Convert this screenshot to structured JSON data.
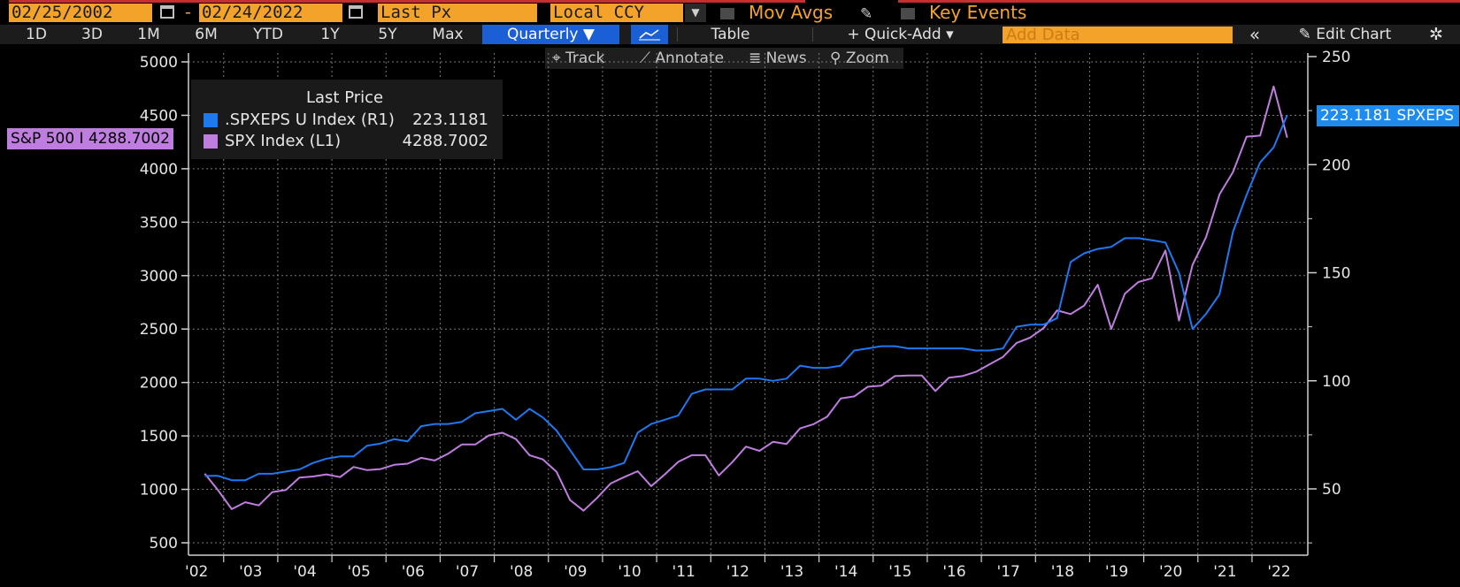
{
  "toolbar": {
    "start_date": "02/25/2002",
    "end_date": "02/24/2022",
    "date_dash": "-",
    "field": "Last Px",
    "currency": "Local CCY",
    "mov_avgs": "Mov Avgs",
    "key_events": "Key Events"
  },
  "tabs": {
    "periods": [
      "1D",
      "3D",
      "1M",
      "6M",
      "YTD",
      "1Y",
      "5Y",
      "Max"
    ],
    "frequency": "Quarterly ▼",
    "table": "Table",
    "quick_add": "+ Quick-Add ▾",
    "add_data_placeholder": "Add Data",
    "collapse": "«",
    "edit_chart": "Edit Chart"
  },
  "chart_toolbar": {
    "track": "Track",
    "annotate": "Annotate",
    "news": "News",
    "zoom": "Zoom"
  },
  "legend": {
    "title": "Last Price",
    "items": [
      {
        "name": ".SPXEPS U Index  (R1)",
        "value": "223.1181",
        "color": "#1e78f0"
      },
      {
        "name": "SPX Index  (L1)",
        "value": "4288.7002",
        "color": "#c07de0"
      }
    ]
  },
  "tags": {
    "left": "S&P 500 I 4288.7002",
    "right": "223.1181 SPXEPS"
  },
  "chart_data": {
    "type": "line",
    "x_tick_labels": [
      "'02",
      "'03",
      "'04",
      "'05",
      "'06",
      "'07",
      "'08",
      "'09",
      "'10",
      "'11",
      "'12",
      "'13",
      "'14",
      "'15",
      "'16",
      "'17",
      "'18",
      "'19",
      "'20",
      "'21",
      "'22"
    ],
    "left_axis": {
      "ticks": [
        500,
        1000,
        1500,
        2000,
        2500,
        3000,
        3500,
        4000,
        4500,
        5000
      ],
      "range": [
        360,
        5100
      ]
    },
    "right_axis": {
      "ticks": [
        50,
        100,
        150,
        200,
        250
      ],
      "range": [
        25,
        255
      ]
    },
    "grid": true,
    "series": [
      {
        "name": "SPX Index",
        "axis": "left",
        "color": "#c07de0",
        "x": [
          2002.15,
          2002.4,
          2002.65,
          2002.9,
          2003.15,
          2003.4,
          2003.65,
          2003.9,
          2004.15,
          2004.4,
          2004.65,
          2004.9,
          2005.15,
          2005.4,
          2005.65,
          2005.9,
          2006.15,
          2006.4,
          2006.65,
          2006.9,
          2007.15,
          2007.4,
          2007.65,
          2007.9,
          2008.15,
          2008.4,
          2008.65,
          2008.9,
          2009.15,
          2009.4,
          2009.65,
          2009.9,
          2010.15,
          2010.4,
          2010.65,
          2010.9,
          2011.15,
          2011.4,
          2011.65,
          2011.9,
          2012.15,
          2012.4,
          2012.65,
          2012.9,
          2013.15,
          2013.4,
          2013.65,
          2013.9,
          2014.15,
          2014.4,
          2014.65,
          2014.9,
          2015.15,
          2015.4,
          2015.65,
          2015.9,
          2016.15,
          2016.4,
          2016.65,
          2016.9,
          2017.15,
          2017.4,
          2017.65,
          2017.9,
          2018.15,
          2018.4,
          2018.65,
          2018.9,
          2019.15,
          2019.4,
          2019.65,
          2019.9,
          2020.15,
          2020.4,
          2020.65,
          2020.9,
          2021.15,
          2021.4,
          2021.65,
          2021.9,
          2022.15
        ],
        "values": [
          1148,
          990,
          815,
          880,
          850,
          975,
          995,
          1110,
          1120,
          1140,
          1115,
          1210,
          1180,
          1190,
          1230,
          1240,
          1295,
          1270,
          1335,
          1420,
          1420,
          1505,
          1530,
          1470,
          1320,
          1280,
          1165,
          900,
          800,
          920,
          1055,
          1115,
          1170,
          1030,
          1140,
          1258,
          1320,
          1320,
          1130,
          1255,
          1400,
          1360,
          1445,
          1425,
          1570,
          1610,
          1680,
          1850,
          1870,
          1960,
          1970,
          2060,
          2065,
          2065,
          1920,
          2045,
          2060,
          2100,
          2170,
          2240,
          2370,
          2420,
          2510,
          2675,
          2640,
          2720,
          2915,
          2500,
          2830,
          2940,
          2975,
          3235,
          2580,
          3100,
          3360,
          3760,
          3970,
          4300,
          4310,
          4770,
          4290
        ]
      },
      {
        "name": ".SPXEPS U Index",
        "axis": "right",
        "color": "#1e78f0",
        "x": [
          2002.15,
          2002.4,
          2002.65,
          2002.9,
          2003.15,
          2003.4,
          2003.65,
          2003.9,
          2004.15,
          2004.4,
          2004.65,
          2004.9,
          2005.15,
          2005.4,
          2005.65,
          2005.9,
          2006.15,
          2006.4,
          2006.65,
          2006.9,
          2007.15,
          2007.4,
          2007.65,
          2007.9,
          2008.15,
          2008.4,
          2008.65,
          2008.9,
          2009.15,
          2009.4,
          2009.65,
          2009.9,
          2010.15,
          2010.4,
          2010.65,
          2010.9,
          2011.15,
          2011.4,
          2011.65,
          2011.9,
          2012.15,
          2012.4,
          2012.65,
          2012.9,
          2013.15,
          2013.4,
          2013.65,
          2013.9,
          2014.15,
          2014.4,
          2014.65,
          2014.9,
          2015.15,
          2015.4,
          2015.65,
          2015.9,
          2016.15,
          2016.4,
          2016.65,
          2016.9,
          2017.15,
          2017.4,
          2017.65,
          2017.9,
          2018.15,
          2018.4,
          2018.65,
          2018.9,
          2019.15,
          2019.4,
          2019.65,
          2019.9,
          2020.15,
          2020.4,
          2020.65,
          2020.9,
          2021.15,
          2021.4,
          2021.65,
          2021.9,
          2022.15
        ],
        "values": [
          56,
          56,
          54,
          54,
          57,
          57,
          58,
          59,
          62,
          64,
          65,
          65,
          70,
          71,
          73,
          72,
          79,
          80,
          80,
          81,
          85,
          86,
          87,
          82,
          87,
          83,
          77,
          68,
          59,
          59,
          60,
          62,
          76,
          80,
          82,
          84,
          94,
          96,
          96,
          96,
          101,
          101,
          100,
          101,
          107,
          106,
          106,
          107,
          114,
          115,
          116,
          116,
          115,
          115,
          115,
          115,
          115,
          114,
          114,
          115,
          125,
          126,
          126,
          129,
          155,
          159,
          161,
          162,
          166,
          166,
          165,
          164,
          150,
          124,
          131,
          140,
          169,
          186,
          201,
          208,
          223
        ]
      }
    ]
  }
}
